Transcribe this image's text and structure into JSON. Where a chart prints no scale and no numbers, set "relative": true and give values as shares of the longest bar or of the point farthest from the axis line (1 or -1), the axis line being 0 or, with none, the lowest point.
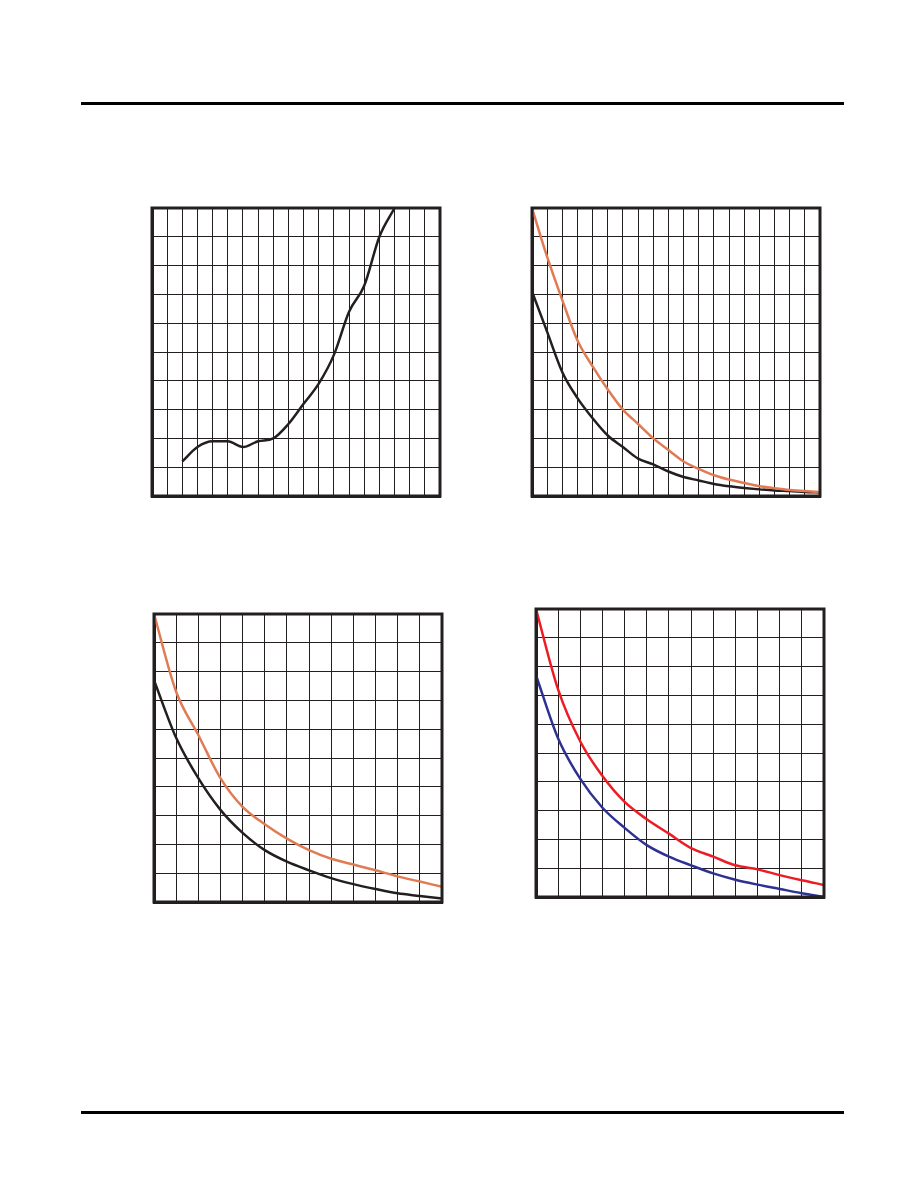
{
  "chart_data": [
    {
      "type": "line",
      "relative": true,
      "grid": true,
      "tick_labels": false,
      "categories": [
        null,
        null,
        null,
        null,
        null,
        null,
        null,
        null,
        null,
        null,
        null,
        null,
        null,
        null,
        null,
        null,
        null,
        null,
        null,
        null
      ],
      "series": [
        {
          "color": "#231f20",
          "values": [
            null,
            null,
            0.12,
            0.17,
            0.19,
            0.19,
            0.17,
            0.19,
            0.2,
            0.25,
            0.32,
            0.39,
            0.49,
            0.64,
            0.73,
            0.9,
            1,
            null,
            null,
            null
          ]
        }
      ]
    },
    {
      "type": "line",
      "relative": true,
      "grid": true,
      "tick_labels": false,
      "categories": [
        null,
        null,
        null,
        null,
        null,
        null,
        null,
        null,
        null,
        null,
        null,
        null,
        null,
        null,
        null,
        null,
        null,
        null,
        null,
        null
      ],
      "series": [
        {
          "color": "#e07b53",
          "values": [
            1,
            0.83,
            0.68,
            0.54,
            0.45,
            0.37,
            0.3,
            0.25,
            0.2,
            0.16,
            0.12,
            0.094,
            0.072,
            0.057,
            0.045,
            0.034,
            0.027,
            0.021,
            0.017,
            0.014
          ]
        },
        {
          "color": "#231f20",
          "values": [
            0.71,
            0.57,
            0.43,
            0.34,
            0.27,
            0.21,
            0.17,
            0.13,
            0.11,
            0.085,
            0.066,
            0.054,
            0.042,
            0.034,
            0.028,
            0.023,
            0.019,
            0.017,
            0.014,
            0.012
          ]
        }
      ]
    },
    {
      "type": "line",
      "relative": true,
      "grid": true,
      "tick_labels": false,
      "categories": [
        null,
        null,
        null,
        null,
        null,
        null,
        null,
        null,
        null,
        null,
        null,
        null,
        null,
        null
      ],
      "series": [
        {
          "color": "#e07b53",
          "values": [
            1,
            0.73,
            0.58,
            0.43,
            0.33,
            0.27,
            0.22,
            0.18,
            0.15,
            0.13,
            0.11,
            0.089,
            0.071,
            0.053
          ]
        },
        {
          "color": "#231f20",
          "values": [
            0.77,
            0.57,
            0.43,
            0.32,
            0.24,
            0.18,
            0.14,
            0.11,
            0.083,
            0.062,
            0.045,
            0.03,
            0.021,
            0.012
          ]
        }
      ]
    },
    {
      "type": "line",
      "relative": true,
      "grid": true,
      "tick_labels": false,
      "categories": [
        null,
        null,
        null,
        null,
        null,
        null,
        null,
        null,
        null,
        null,
        null,
        null,
        null,
        null
      ],
      "series": [
        {
          "color": "#ed1c24",
          "values": [
            1,
            0.72,
            0.54,
            0.42,
            0.33,
            0.27,
            0.22,
            0.17,
            0.14,
            0.11,
            0.096,
            0.076,
            0.058,
            0.042
          ]
        },
        {
          "color": "#2e3192",
          "values": [
            0.77,
            0.55,
            0.41,
            0.31,
            0.24,
            0.18,
            0.14,
            0.11,
            0.082,
            0.06,
            0.043,
            0.028,
            0.013,
            0
          ]
        }
      ]
    }
  ]
}
